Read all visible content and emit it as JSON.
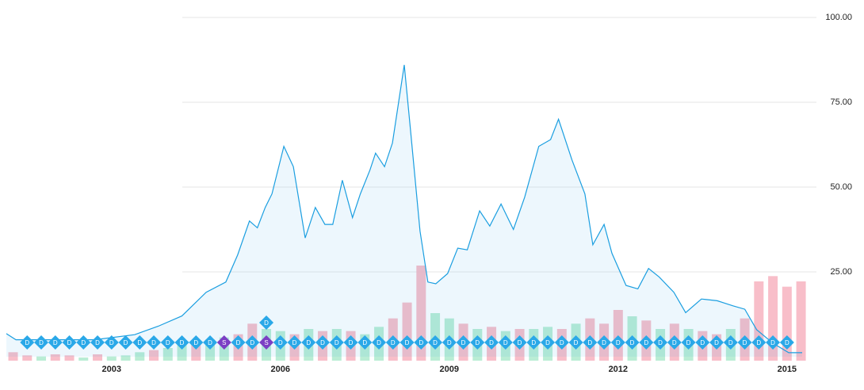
{
  "chart_data": {
    "type": "area",
    "x": [
      2001.13,
      2001.3,
      2001.58,
      2002.14,
      2002.7,
      2003.41,
      2003.83,
      2004.25,
      2004.68,
      2005.03,
      2005.24,
      2005.45,
      2005.59,
      2005.73,
      2005.85,
      2006.06,
      2006.23,
      2006.44,
      2006.62,
      2006.79,
      2006.93,
      2007.1,
      2007.28,
      2007.42,
      2007.59,
      2007.69,
      2007.85,
      2007.99,
      2008.2,
      2008.31,
      2008.48,
      2008.62,
      2008.76,
      2008.97,
      2009.15,
      2009.32,
      2009.54,
      2009.72,
      2009.92,
      2010.14,
      2010.34,
      2010.59,
      2010.8,
      2010.94,
      2011.18,
      2011.41,
      2011.55,
      2011.75,
      2011.89,
      2012.14,
      2012.35,
      2012.54,
      2012.73,
      2012.99,
      2013.2,
      2013.48,
      2013.76,
      2014.04,
      2014.25,
      2014.46,
      2014.75,
      2015.03,
      2015.27
    ],
    "series": [
      {
        "color": "#1a9ee0",
        "values": [
          6.8,
          5,
          5,
          5,
          5,
          6.5,
          9,
          12,
          19,
          22,
          30,
          40,
          38,
          44,
          48,
          62,
          56,
          35,
          44,
          39,
          39,
          52,
          41,
          48,
          55,
          60,
          56,
          63,
          86,
          67,
          37,
          22,
          21.5,
          24.5,
          32,
          31.5,
          43,
          38.5,
          45,
          37.5,
          47,
          62,
          64,
          70,
          58,
          48,
          33,
          39,
          30.5,
          21,
          20,
          26,
          23.5,
          19,
          13,
          17,
          16.5,
          15,
          14,
          8,
          4,
          1.2,
          1.2
        ]
      }
    ],
    "xlim": [
      2001.13,
      2015.27
    ],
    "xticks": [
      2003,
      2006,
      2009,
      2012,
      2015
    ],
    "ylim": [
      0,
      100
    ],
    "yticks": [
      {
        "value": 25,
        "label": "25.00"
      },
      {
        "value": 50,
        "label": "50.00"
      },
      {
        "value": 75,
        "label": "75.00"
      },
      {
        "value": 100,
        "label": "100.00"
      }
    ],
    "grid": true,
    "volume": {
      "x": [
        2001.25,
        2001.5,
        2001.75,
        2002,
        2002.25,
        2002.5,
        2002.75,
        2003,
        2003.25,
        2003.5,
        2003.75,
        2004,
        2004.25,
        2004.5,
        2004.75,
        2005,
        2005.25,
        2005.5,
        2005.75,
        2006,
        2006.25,
        2006.5,
        2006.75,
        2007,
        2007.25,
        2007.5,
        2007.75,
        2008,
        2008.25,
        2008.5,
        2008.75,
        2009,
        2009.25,
        2009.5,
        2009.75,
        2010,
        2010.25,
        2010.5,
        2010.75,
        2011,
        2011.25,
        2011.5,
        2011.75,
        2012,
        2012.25,
        2012.5,
        2012.75,
        2013,
        2013.25,
        2013.5,
        2013.75,
        2014,
        2014.25,
        2014.5,
        2014.75,
        2015,
        2015.25
      ],
      "values": [
        8,
        5,
        4,
        6,
        5,
        3,
        6,
        4,
        5,
        8,
        10,
        12,
        15,
        18,
        20,
        22,
        25,
        35,
        30,
        28,
        25,
        30,
        28,
        30,
        28,
        25,
        32,
        40,
        55,
        90,
        45,
        40,
        35,
        30,
        32,
        28,
        30,
        30,
        32,
        30,
        35,
        40,
        35,
        48,
        42,
        38,
        30,
        35,
        30,
        28,
        25,
        30,
        40,
        75,
        80,
        70,
        75
      ],
      "colors": [
        "#f7b7c3",
        "#f7b7c3",
        "#b3ebd0",
        "#f7b7c3",
        "#f7b7c3",
        "#b3ebd0",
        "#f7b7c3",
        "#b3ebd0",
        "#b3ebd0",
        "#b3ebd0",
        "#f7b7c3",
        "#b3ebd0",
        "#b3ebd0",
        "#f7b7c3",
        "#b3ebd0",
        "#b3ebd0",
        "#f7b7c3",
        "#f7b7c3",
        "#b3ebd0",
        "#b3ebd0",
        "#f7b7c3",
        "#b3ebd0",
        "#f7b7c3",
        "#b3ebd0",
        "#f7b7c3",
        "#b3ebd0",
        "#b3ebd0",
        "#f7b7c3",
        "#f7b7c3",
        "#f7b7c3",
        "#b3ebd0",
        "#b3ebd0",
        "#f7b7c3",
        "#b3ebd0",
        "#f7b7c3",
        "#b3ebd0",
        "#f7b7c3",
        "#b3ebd0",
        "#b3ebd0",
        "#f7b7c3",
        "#b3ebd0",
        "#f7b7c3",
        "#f7b7c3",
        "#f7b7c3",
        "#b3ebd0",
        "#f7b7c3",
        "#b3ebd0",
        "#f7b7c3",
        "#b3ebd0",
        "#f7b7c3",
        "#f7b7c3",
        "#b3ebd0",
        "#f7b7c3",
        "#f7b7c3",
        "#f7b7c3",
        "#f7b7c3",
        "#f7b7c3"
      ]
    },
    "events": {
      "x": [
        2001.5,
        2001.75,
        2002,
        2002.25,
        2002.5,
        2002.75,
        2003,
        2003.25,
        2003.5,
        2003.75,
        2004,
        2004.25,
        2004.5,
        2004.75,
        2005,
        2005.25,
        2005.5,
        2005.75,
        2005.75,
        2006,
        2006.25,
        2006.5,
        2006.75,
        2007,
        2007.25,
        2007.5,
        2007.75,
        2008,
        2008.25,
        2008.5,
        2008.75,
        2009,
        2009.25,
        2009.5,
        2009.75,
        2010,
        2010.25,
        2010.5,
        2010.75,
        2011,
        2011.25,
        2011.5,
        2011.75,
        2012,
        2012.25,
        2012.5,
        2012.75,
        2013,
        2013.25,
        2013.5,
        2013.75,
        2014,
        2014.25,
        2014.5,
        2014.75,
        2015
      ],
      "labels": [
        "D",
        "D",
        "D",
        "D",
        "D",
        "D",
        "D",
        "D",
        "D",
        "D",
        "D",
        "D",
        "D",
        "D",
        "S",
        "D",
        "D",
        "S",
        "D",
        "D",
        "D",
        "D",
        "D",
        "D",
        "D",
        "D",
        "D",
        "D",
        "D",
        "D",
        "D",
        "D",
        "D",
        "D",
        "D",
        "D",
        "D",
        "D",
        "D",
        "D",
        "D",
        "D",
        "D",
        "D",
        "D",
        "D",
        "D",
        "D",
        "D",
        "D",
        "D",
        "D",
        "D",
        "D",
        "D",
        "D"
      ],
      "colors": {
        "D": "#2aa8e8",
        "S": "#7b3fc4"
      }
    }
  }
}
